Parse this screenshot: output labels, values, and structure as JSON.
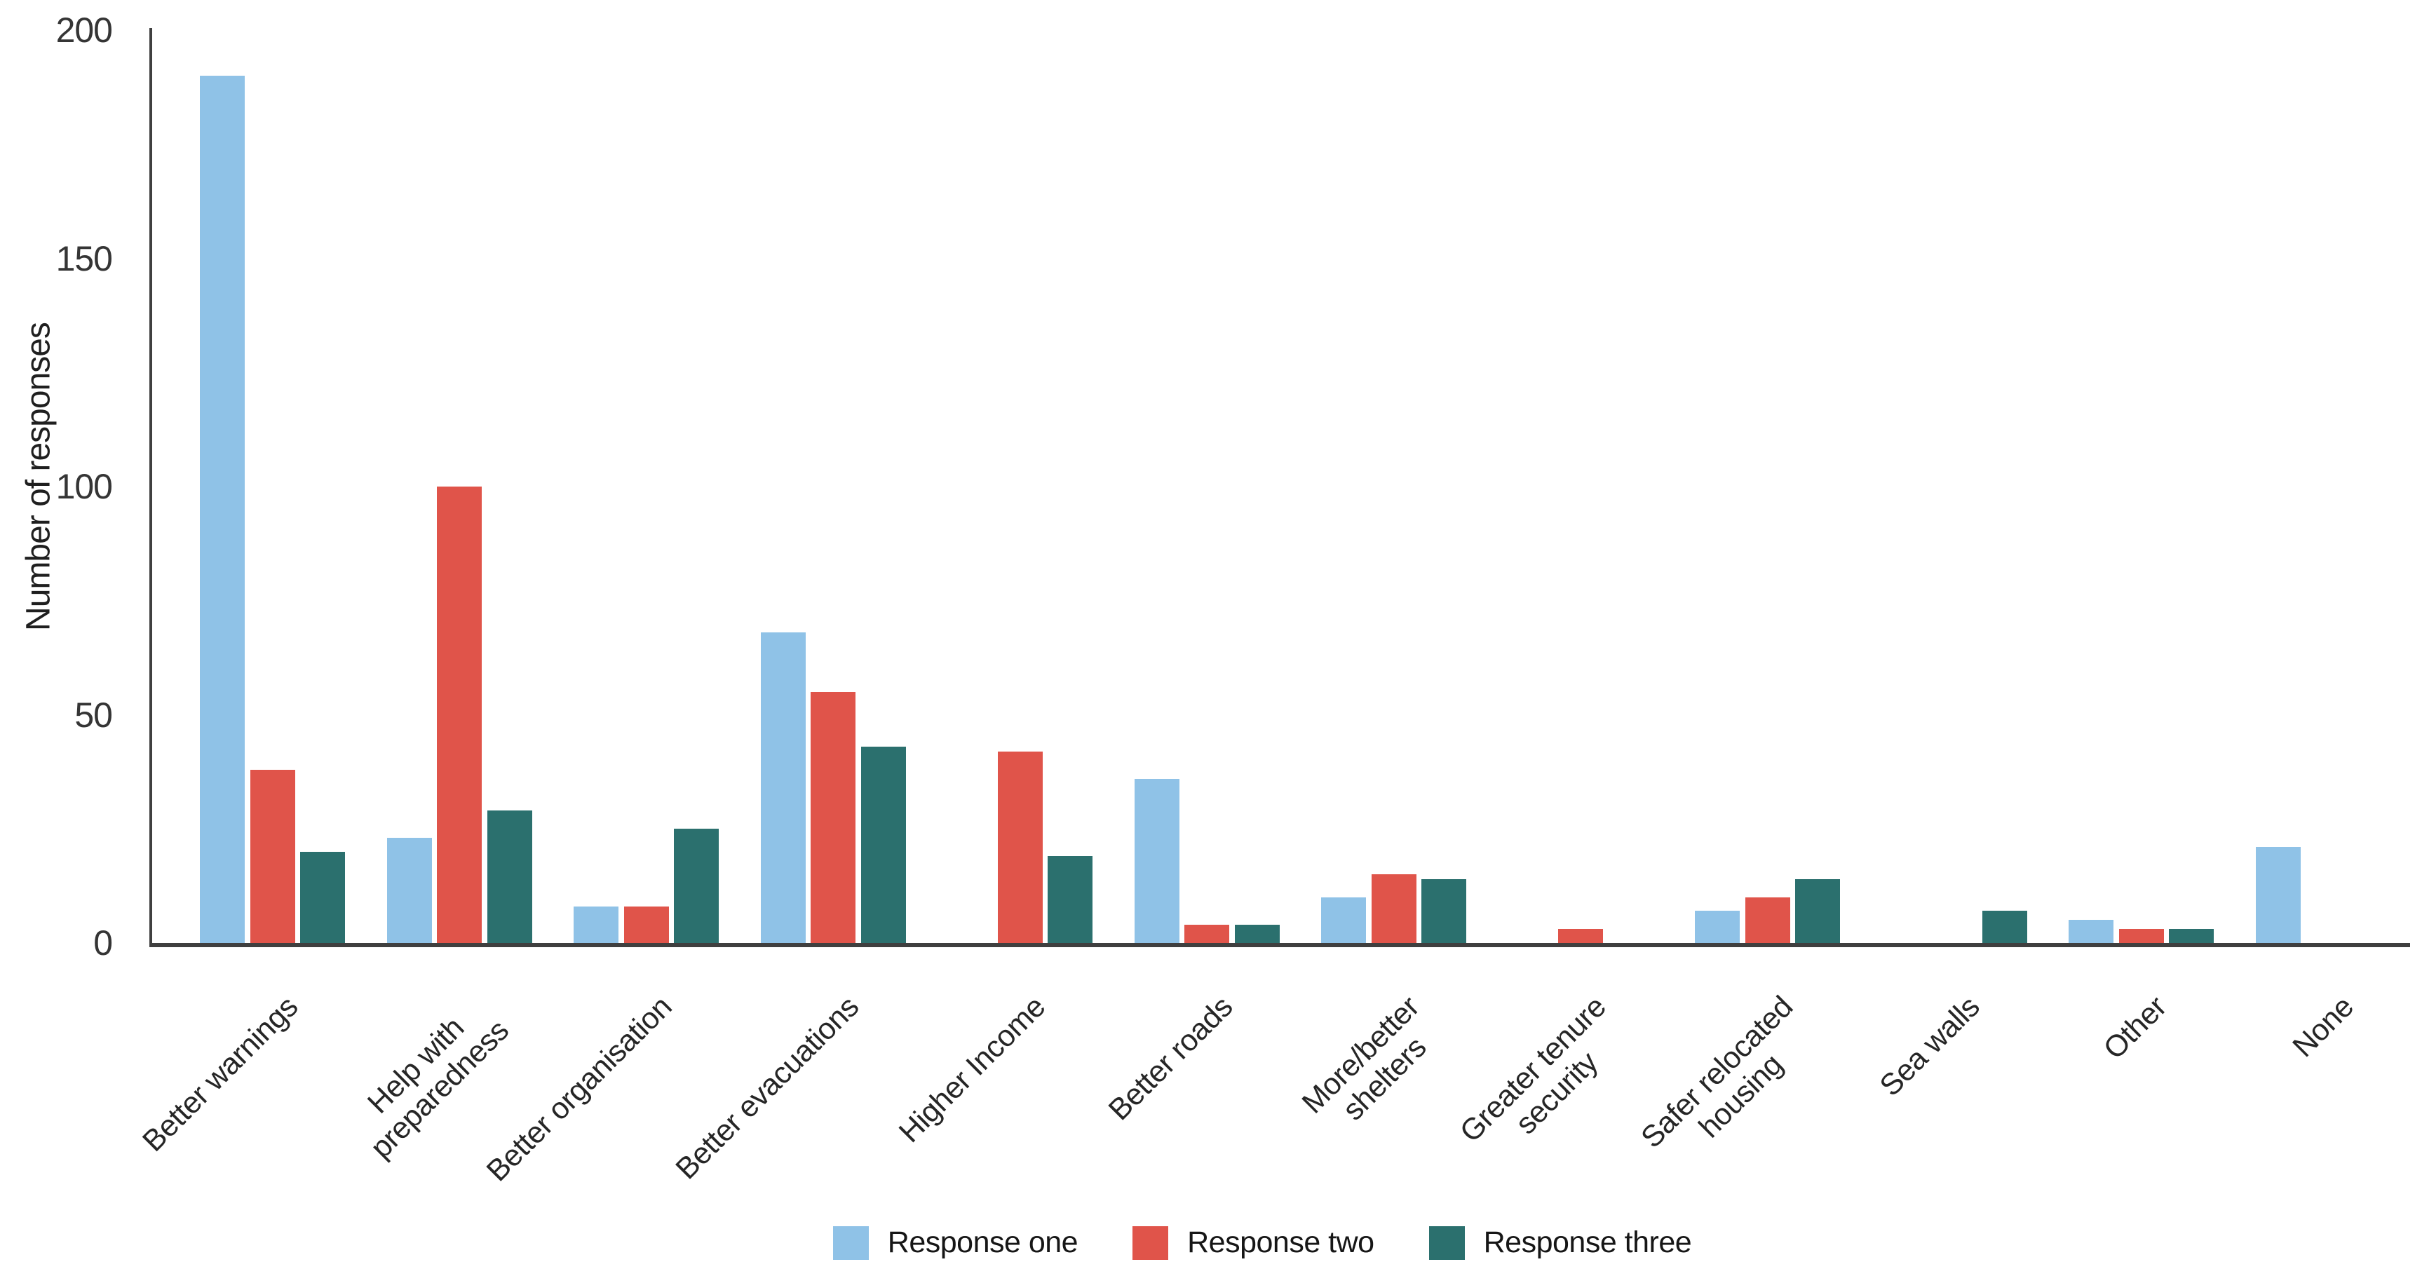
{
  "chart_data": {
    "type": "bar",
    "title": "",
    "xlabel": "",
    "ylabel": "Number of responses",
    "ylim": [
      0,
      200
    ],
    "yticks": [
      0,
      50,
      100,
      150,
      200
    ],
    "grid": false,
    "legend_position": "bottom-center",
    "axis_color": "#3f3f3f",
    "categories": [
      "Better warnings",
      "Help with\npreparedness",
      "Better organisation",
      "Better evacuations",
      "Higher Income",
      "Better roads",
      "More/better\nshelters",
      "Greater tenure\nsecurity",
      "Safer relocated\nhousing",
      "Sea walls",
      "Other",
      "None"
    ],
    "series": [
      {
        "name": "Response one",
        "color": "#8fc2e7",
        "values": [
          190,
          23,
          8,
          68,
          0,
          36,
          10,
          0,
          7,
          0,
          5,
          21
        ]
      },
      {
        "name": "Response two",
        "color": "#e0544a",
        "values": [
          38,
          100,
          8,
          55,
          42,
          4,
          15,
          3,
          10,
          0,
          3,
          0
        ]
      },
      {
        "name": "Response three",
        "color": "#2b706e",
        "values": [
          20,
          29,
          25,
          43,
          19,
          4,
          14,
          0,
          14,
          7,
          3,
          0
        ]
      }
    ]
  }
}
